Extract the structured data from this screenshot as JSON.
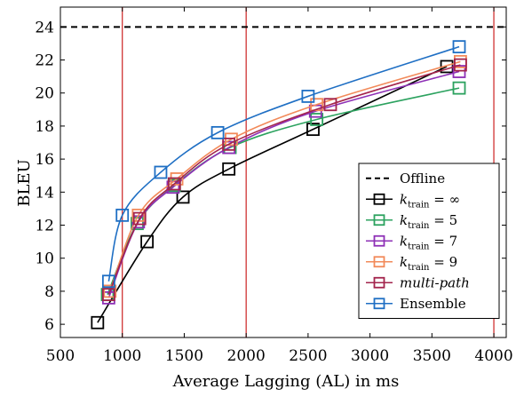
{
  "chart_data": {
    "type": "line",
    "xlabel": "Average Lagging (AL) in ms",
    "ylabel": "BLEU",
    "xlim": [
      500,
      4100
    ],
    "ylim": [
      5.2,
      25.2
    ],
    "xticks": [
      500,
      1000,
      1500,
      2000,
      2500,
      3000,
      3500,
      4000
    ],
    "yticks": [
      6,
      8,
      10,
      12,
      14,
      16,
      18,
      20,
      22,
      24
    ],
    "xtick_labels": [
      "500",
      "1000",
      "1500",
      "2000",
      "2500",
      "3000",
      "3500",
      "4000"
    ],
    "ytick_labels": [
      "6",
      "8",
      "10",
      "12",
      "14",
      "16",
      "18",
      "20",
      "22",
      "24"
    ],
    "grid": false,
    "legend_position": "bottom-right",
    "offline": {
      "name": "Offline",
      "value": 24,
      "color": "#000000"
    },
    "vertical_lines": {
      "x": [
        1000,
        2000,
        4000
      ],
      "color": "#cc2222"
    },
    "series": [
      {
        "name": "k_train = ∞",
        "legend_main": "k",
        "legend_sub": "train",
        "legend_rest": " = ∞",
        "color": "#000000",
        "points": [
          [
            800,
            6.1
          ],
          [
            1200,
            11.0
          ],
          [
            1490,
            13.7
          ],
          [
            1860,
            15.4
          ],
          [
            2540,
            17.8
          ],
          [
            3620,
            21.6
          ]
        ]
      },
      {
        "name": "k_train = 5",
        "legend_main": "k",
        "legend_sub": "train",
        "legend_rest": " = 5",
        "color": "#2ca25f",
        "points": [
          [
            880,
            7.8
          ],
          [
            1120,
            12.1
          ],
          [
            1420,
            14.4
          ],
          [
            1870,
            16.7
          ],
          [
            2570,
            18.4
          ],
          [
            3720,
            20.3
          ]
        ]
      },
      {
        "name": "k_train = 7",
        "legend_main": "k",
        "legend_sub": "train",
        "legend_rest": " = 7",
        "color": "#8e30b6",
        "points": [
          [
            890,
            7.6
          ],
          [
            1130,
            12.2
          ],
          [
            1410,
            14.3
          ],
          [
            1860,
            16.7
          ],
          [
            2560,
            18.9
          ],
          [
            3720,
            21.3
          ]
        ]
      },
      {
        "name": "k_train = 9",
        "legend_main": "k",
        "legend_sub": "train",
        "legend_rest": " = 9",
        "color": "#f28a5a",
        "points": [
          [
            900,
            8.0
          ],
          [
            1130,
            12.6
          ],
          [
            1440,
            14.8
          ],
          [
            1880,
            17.2
          ],
          [
            2570,
            19.3
          ],
          [
            3730,
            21.9
          ]
        ]
      },
      {
        "name": "multi-path",
        "legend_main": "multi-path",
        "legend_sub": "",
        "legend_rest": "",
        "italic": true,
        "color": "#a3244c",
        "points": [
          [
            890,
            7.8
          ],
          [
            1140,
            12.4
          ],
          [
            1420,
            14.5
          ],
          [
            1860,
            16.9
          ],
          [
            2680,
            19.3
          ],
          [
            3730,
            21.7
          ]
        ]
      },
      {
        "name": "Ensemble",
        "legend_main": "Ensemble",
        "legend_sub": "",
        "legend_rest": "",
        "color": "#1f6fc4",
        "points": [
          [
            890,
            8.6
          ],
          [
            1000,
            12.6
          ],
          [
            1310,
            15.2
          ],
          [
            1770,
            17.6
          ],
          [
            2500,
            19.8
          ],
          [
            3720,
            22.8
          ]
        ]
      }
    ]
  }
}
